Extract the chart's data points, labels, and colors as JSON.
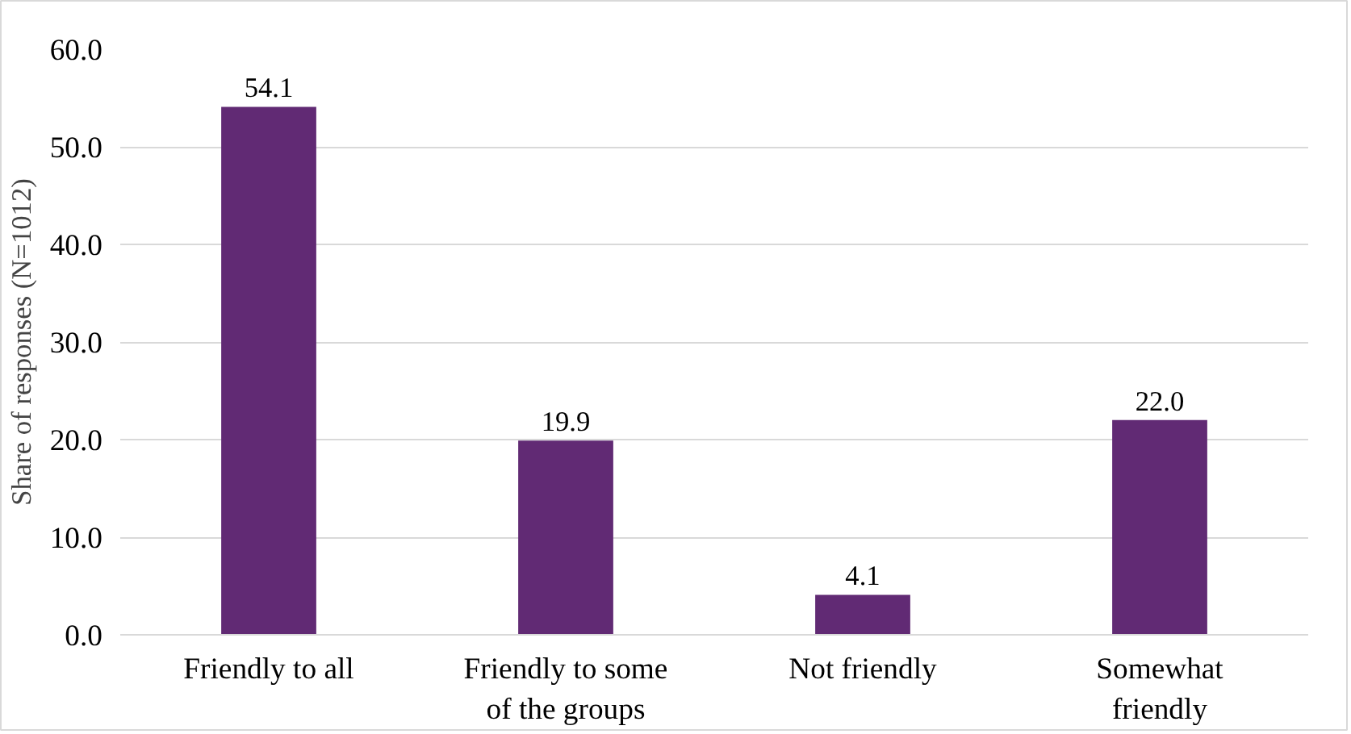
{
  "chart_data": {
    "type": "bar",
    "ylabel": "Share of responses (N=1012)",
    "categories": [
      "Friendly to all",
      "Friendly to some\nof the groups",
      "Not friendly",
      "Somewhat\nfriendly"
    ],
    "values": [
      54.1,
      19.9,
      4.1,
      22.0
    ],
    "color": "#612a74",
    "ylim": [
      0,
      60
    ],
    "yticks": [
      {
        "value": 0,
        "label": "0.0"
      },
      {
        "value": 10,
        "label": "10.0"
      },
      {
        "value": 20,
        "label": "20.0"
      },
      {
        "value": 30,
        "label": "30.0"
      },
      {
        "value": 40,
        "label": "40.0"
      },
      {
        "value": 50,
        "label": "50.0"
      },
      {
        "value": 60,
        "label": "60.0"
      }
    ],
    "value_labels": [
      "54.1",
      "19.9",
      "4.1",
      "22.0"
    ],
    "grid": "y"
  }
}
